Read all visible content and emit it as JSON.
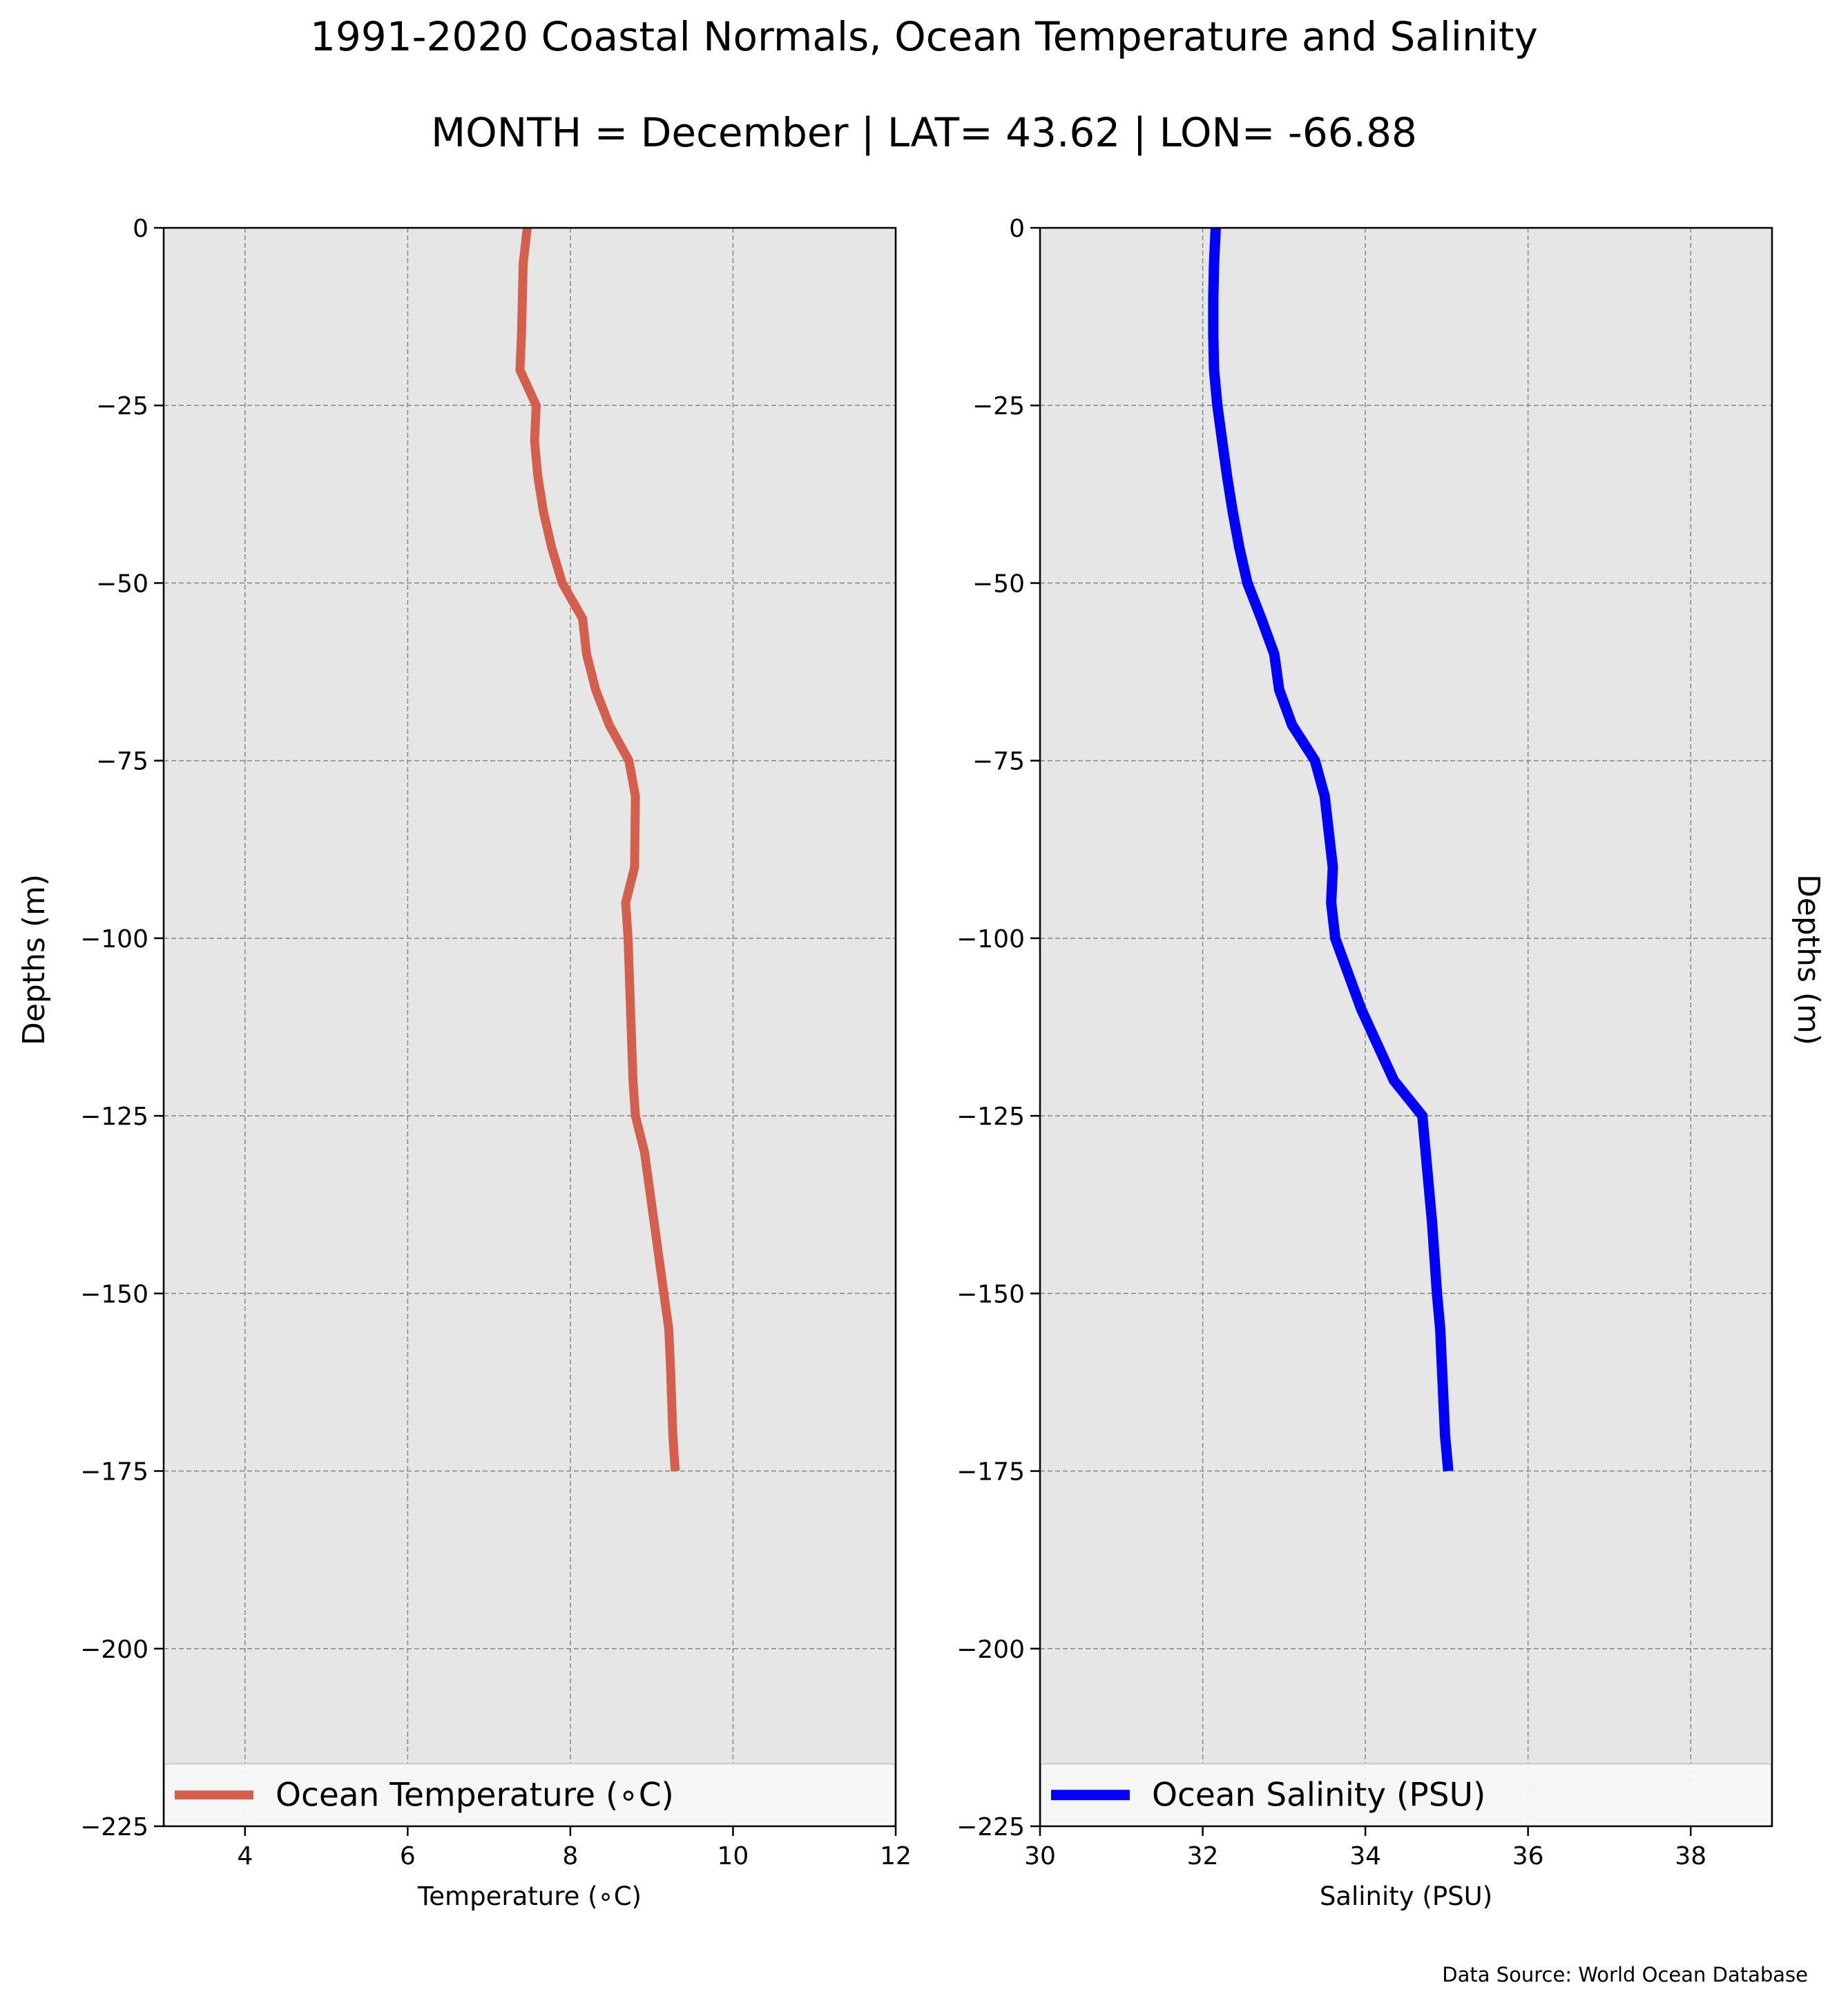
{
  "title": "1991-2020 Coastal Normals, Ocean Temperature and Salinity",
  "subtitle": "MONTH = December | LAT= 43.62 | LON= -66.88",
  "source_note": "Data Source: World Ocean Database",
  "ylabel_left": "Depths (m)",
  "ylabel_right": "Depths (m)",
  "chart_data": [
    {
      "type": "line",
      "name": "temperature-panel",
      "xlabel": "Temperature (∘C)",
      "ylabel": "Depths (m)",
      "xlim": [
        3,
        12
      ],
      "ylim": [
        -225,
        0
      ],
      "xticks": [
        4,
        6,
        8,
        10,
        12
      ],
      "yticks": [
        0,
        -25,
        -50,
        -75,
        -100,
        -125,
        -150,
        -175,
        -200,
        -225
      ],
      "grid": true,
      "legend_position": "bottom",
      "series": [
        {
          "name": "Ocean Temperature (∘C)",
          "color": "#d45f4d",
          "x": [
            7.47,
            7.42,
            7.41,
            7.4,
            7.38,
            7.58,
            7.56,
            7.6,
            7.67,
            7.77,
            7.9,
            8.15,
            8.2,
            8.31,
            8.48,
            8.72,
            8.8,
            8.79,
            8.79,
            8.68,
            8.71,
            8.74,
            8.77,
            8.8,
            8.91,
            9.03,
            9.15,
            9.21,
            9.23,
            9.26,
            9.29
          ],
          "y": [
            0,
            -5,
            -10,
            -15,
            -20,
            -25,
            -30,
            -35,
            -40,
            -45,
            -50,
            -55,
            -60,
            -65,
            -70,
            -75,
            -80,
            -90,
            -90,
            -95,
            -100,
            -110,
            -120,
            -125,
            -130,
            -140,
            -150,
            -155,
            -160,
            -170,
            -175
          ]
        }
      ],
      "ytick_labels": [
        "0",
        "−25",
        "−50",
        "−75",
        "−100",
        "−125",
        "−150",
        "−175",
        "−200",
        "−225"
      ],
      "xtick_labels": [
        "4",
        "6",
        "8",
        "10",
        "12"
      ]
    },
    {
      "type": "line",
      "name": "salinity-panel",
      "xlabel": "Salinity (PSU)",
      "ylabel": "Depths (m)",
      "xlim": [
        30,
        39
      ],
      "ylim": [
        -225,
        0
      ],
      "xticks": [
        30,
        32,
        34,
        36,
        38
      ],
      "yticks": [
        0,
        -25,
        -50,
        -75,
        -100,
        -125,
        -150,
        -175,
        -200,
        -225
      ],
      "grid": true,
      "legend_position": "bottom",
      "series": [
        {
          "name": "Ocean Salinity (PSU)",
          "color": "#0000ff",
          "x": [
            32.16,
            32.14,
            32.13,
            32.13,
            32.14,
            32.18,
            32.24,
            32.3,
            32.37,
            32.45,
            32.55,
            32.72,
            32.88,
            32.94,
            33.1,
            33.38,
            33.5,
            33.6,
            33.6,
            33.58,
            33.63,
            33.95,
            34.35,
            34.7,
            34.74,
            34.82,
            34.88,
            34.92,
            34.94,
            34.98,
            35.02
          ],
          "y": [
            0,
            -5,
            -10,
            -15,
            -20,
            -25,
            -30,
            -35,
            -40,
            -45,
            -50,
            -55,
            -60,
            -65,
            -70,
            -75,
            -80,
            -90,
            -90,
            -95,
            -100,
            -110,
            -120,
            -125,
            -130,
            -140,
            -150,
            -155,
            -160,
            -170,
            -175
          ]
        }
      ],
      "ytick_labels": [
        "0",
        "−25",
        "−50",
        "−75",
        "−100",
        "−125",
        "−150",
        "−175",
        "−200",
        "−225"
      ],
      "xtick_labels": [
        "30",
        "32",
        "34",
        "36",
        "38"
      ]
    }
  ],
  "colors": {
    "panel_background": "#e6e6e6",
    "grid": "#8c8c8c",
    "legend_background": "#f9f9f9"
  }
}
